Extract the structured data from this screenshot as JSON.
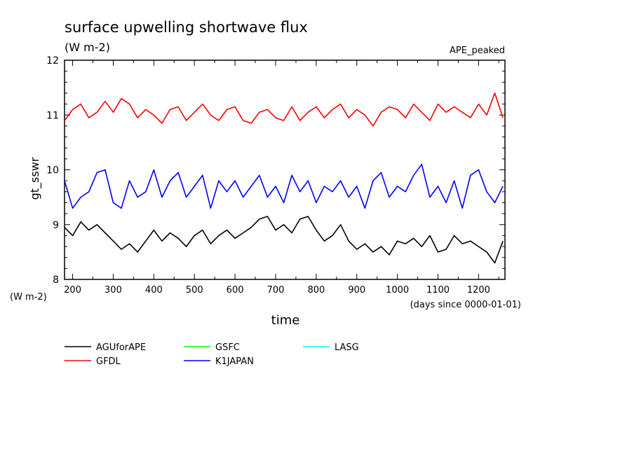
{
  "chart_data": {
    "type": "line",
    "title": "surface upwelling shortwave flux",
    "units_label": "(W m-2)",
    "corner_label": "APE_peaked",
    "xlabel": "time",
    "x_units": "(days since 0000-01-01)",
    "ylabel": "gt_sswr",
    "y_units": "(W m-2)",
    "xlim": [
      180,
      1265
    ],
    "ylim": [
      8,
      12
    ],
    "x_ticks": [
      200,
      300,
      400,
      500,
      600,
      700,
      800,
      900,
      1000,
      1100,
      1200
    ],
    "y_ticks": [
      8,
      9,
      10,
      11,
      12
    ],
    "grid": false,
    "legend_position": "bottom-left",
    "legend": [
      {
        "name": "AGUforAPE",
        "color": "#000000"
      },
      {
        "name": "GSFC",
        "color": "#00ff00"
      },
      {
        "name": "LASG",
        "color": "#00ffff"
      },
      {
        "name": "GFDL",
        "color": "#ff0000"
      },
      {
        "name": "K1JAPAN",
        "color": "#0000ff"
      }
    ],
    "series": [
      {
        "name": "GFDL",
        "color": "#ff0000",
        "x": [
          180,
          200,
          220,
          240,
          260,
          280,
          300,
          320,
          340,
          360,
          380,
          400,
          420,
          440,
          460,
          480,
          500,
          520,
          540,
          560,
          580,
          600,
          620,
          640,
          660,
          680,
          700,
          720,
          740,
          760,
          780,
          800,
          820,
          840,
          860,
          880,
          900,
          920,
          940,
          960,
          980,
          1000,
          1020,
          1040,
          1060,
          1080,
          1100,
          1120,
          1140,
          1160,
          1180,
          1200,
          1220,
          1240,
          1260
        ],
        "y": [
          10.9,
          11.1,
          11.2,
          10.95,
          11.05,
          11.25,
          11.05,
          11.3,
          11.2,
          10.95,
          11.1,
          11.0,
          10.85,
          11.1,
          11.15,
          10.9,
          11.05,
          11.2,
          11.0,
          10.9,
          11.1,
          11.15,
          10.9,
          10.85,
          11.05,
          11.1,
          10.95,
          10.9,
          11.15,
          10.9,
          11.05,
          11.15,
          10.95,
          11.1,
          11.2,
          10.95,
          11.1,
          11.0,
          10.8,
          11.05,
          11.15,
          11.1,
          10.95,
          11.2,
          11.05,
          10.9,
          11.2,
          11.05,
          11.15,
          11.05,
          10.95,
          11.2,
          11.0,
          11.4,
          10.95
        ]
      },
      {
        "name": "K1JAPAN",
        "color": "#0000ff",
        "x": [
          180,
          200,
          220,
          240,
          260,
          280,
          300,
          320,
          340,
          360,
          380,
          400,
          420,
          440,
          460,
          480,
          500,
          520,
          540,
          560,
          580,
          600,
          620,
          640,
          660,
          680,
          700,
          720,
          740,
          760,
          780,
          800,
          820,
          840,
          860,
          880,
          900,
          920,
          940,
          960,
          980,
          1000,
          1020,
          1040,
          1060,
          1080,
          1100,
          1120,
          1140,
          1160,
          1180,
          1200,
          1220,
          1240,
          1260
        ],
        "y": [
          9.8,
          9.3,
          9.5,
          9.6,
          9.95,
          10.0,
          9.4,
          9.3,
          9.8,
          9.5,
          9.6,
          10.0,
          9.5,
          9.8,
          9.95,
          9.5,
          9.7,
          9.9,
          9.3,
          9.8,
          9.6,
          9.8,
          9.5,
          9.7,
          9.9,
          9.5,
          9.7,
          9.4,
          9.9,
          9.6,
          9.8,
          9.4,
          9.7,
          9.6,
          9.8,
          9.5,
          9.7,
          9.3,
          9.8,
          9.95,
          9.5,
          9.7,
          9.6,
          9.9,
          10.1,
          9.5,
          9.7,
          9.4,
          9.8,
          9.3,
          9.9,
          10.0,
          9.6,
          9.4,
          9.7
        ]
      },
      {
        "name": "AGUforAPE",
        "color": "#000000",
        "x": [
          180,
          200,
          220,
          240,
          260,
          280,
          300,
          320,
          340,
          360,
          380,
          400,
          420,
          440,
          460,
          480,
          500,
          520,
          540,
          560,
          580,
          600,
          620,
          640,
          660,
          680,
          700,
          720,
          740,
          760,
          780,
          800,
          820,
          840,
          860,
          880,
          900,
          920,
          940,
          960,
          980,
          1000,
          1020,
          1040,
          1060,
          1080,
          1100,
          1120,
          1140,
          1160,
          1180,
          1200,
          1220,
          1240,
          1260
        ],
        "y": [
          8.95,
          8.8,
          9.05,
          8.9,
          9.0,
          8.85,
          8.7,
          8.55,
          8.65,
          8.5,
          8.7,
          8.9,
          8.7,
          8.85,
          8.75,
          8.6,
          8.8,
          8.9,
          8.65,
          8.8,
          8.9,
          8.75,
          8.85,
          8.95,
          9.1,
          9.15,
          8.9,
          9.0,
          8.85,
          9.1,
          9.15,
          8.9,
          8.7,
          8.8,
          9.0,
          8.7,
          8.55,
          8.65,
          8.5,
          8.6,
          8.45,
          8.7,
          8.65,
          8.75,
          8.6,
          8.8,
          8.5,
          8.55,
          8.8,
          8.65,
          8.7,
          8.6,
          8.5,
          8.3,
          8.7
        ]
      }
    ]
  }
}
